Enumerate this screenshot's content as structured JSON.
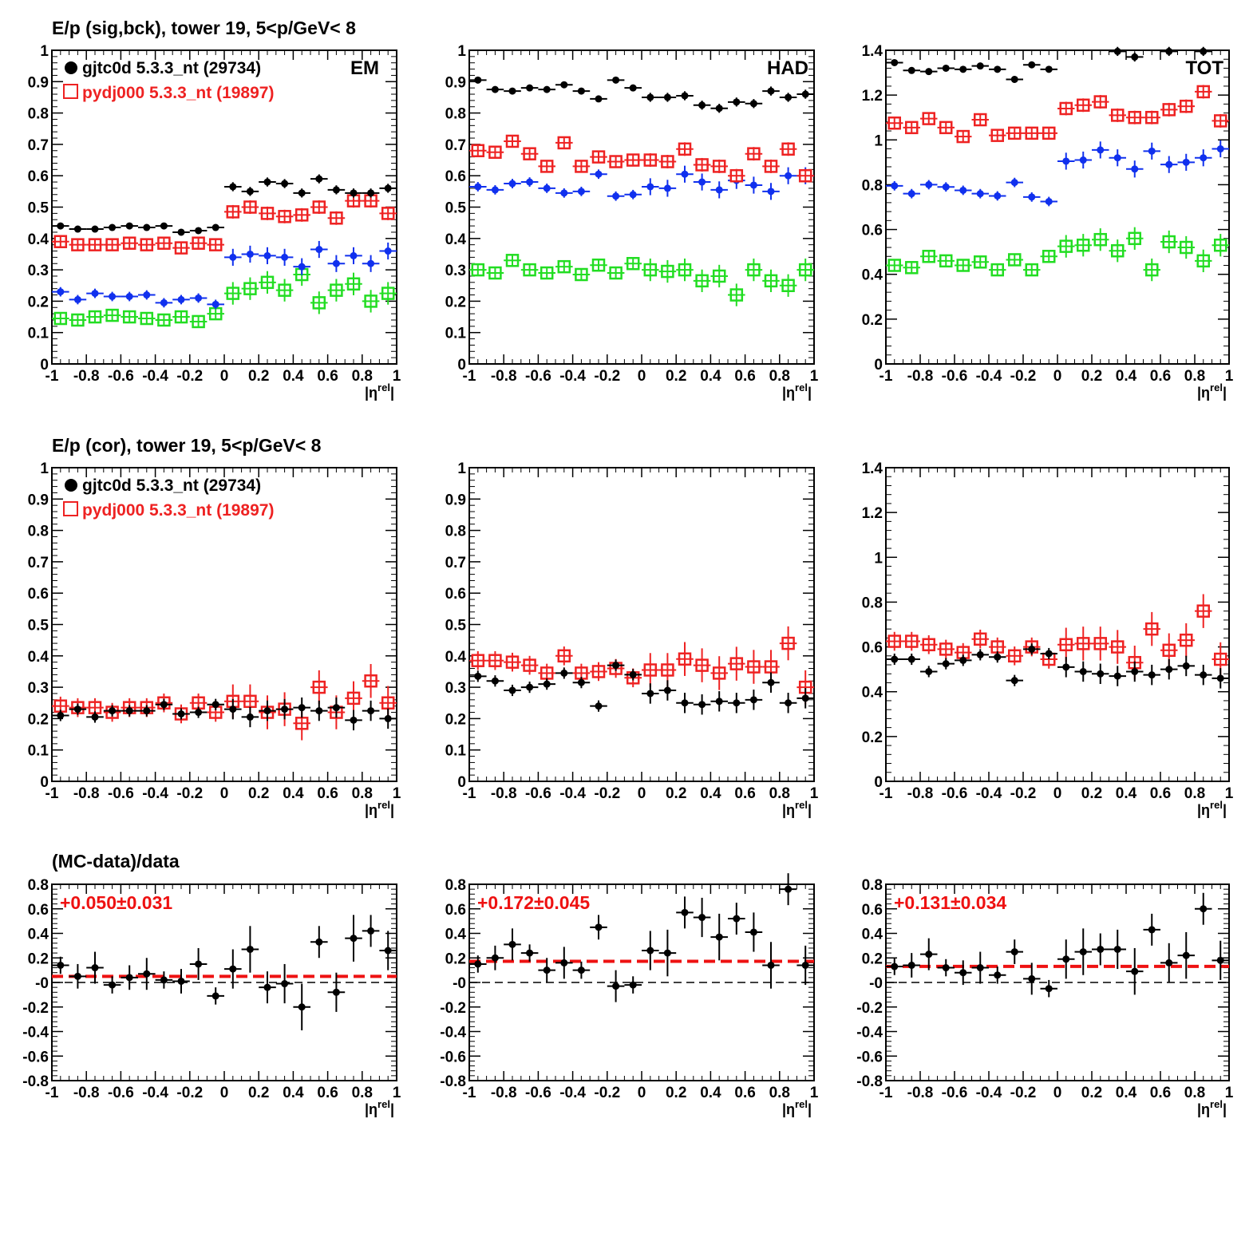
{
  "titles": {
    "row1": "E/p (sig,bck), tower 19,  5<p/GeV< 8",
    "row2": "E/p (cor), tower 19,  5<p/GeV< 8",
    "row3": "(MC-data)/data"
  },
  "legend": {
    "data_label": "gjtc0d 5.3.3_nt (29734)",
    "mc_label": "pydj000 5.3.3_nt (19897)"
  },
  "panel_labels": {
    "em": "EM",
    "had": "HAD",
    "tot": "TOT"
  },
  "axis": {
    "xlabel_main": "|η",
    "xlabel_sup": "rel",
    "xlabel_end": "|",
    "xticks": [
      "-1",
      "-0.8",
      "-0.6",
      "-0.4",
      "-0.2",
      "0",
      "0.2",
      "0.4",
      "0.6",
      "0.8",
      "1"
    ],
    "yticks_1": [
      "0",
      "0.1",
      "0.2",
      "0.3",
      "0.4",
      "0.5",
      "0.6",
      "0.7",
      "0.8",
      "0.9",
      "1"
    ],
    "yticks_14": [
      "0",
      "0.2",
      "0.4",
      "0.6",
      "0.8",
      "1",
      "1.2",
      "1.4"
    ],
    "yticks_ratio": [
      "-0.8",
      "-0.6",
      "-0.4",
      "-0.2",
      "-0",
      "0.2",
      "0.4",
      "0.6",
      "0.8"
    ]
  },
  "colors": {
    "data": "#000000",
    "mc": "#ee2222",
    "sig": "#1030ee",
    "bck": "#22dd22",
    "fit": "#ee1111"
  },
  "chart_data": [
    {
      "id": "em_sigbck",
      "type": "scatter",
      "label": "EM",
      "x": [
        -0.95,
        -0.85,
        -0.75,
        -0.65,
        -0.55,
        -0.45,
        -0.35,
        -0.25,
        -0.15,
        -0.05,
        0.05,
        0.15,
        0.25,
        0.35,
        0.45,
        0.55,
        0.65,
        0.75,
        0.85,
        0.95
      ],
      "xlim": [
        -1,
        1
      ],
      "ylim": [
        0,
        1
      ],
      "series": [
        {
          "name": "gjtc0d 5.3.3_nt (29734)",
          "values": [
            0.44,
            0.43,
            0.43,
            0.435,
            0.44,
            0.435,
            0.44,
            0.42,
            0.425,
            0.435,
            0.565,
            0.55,
            0.58,
            0.575,
            0.545,
            0.59,
            0.555,
            0.545,
            0.545,
            0.56
          ]
        },
        {
          "name": "pydj000 5.3.3_nt (19897)",
          "values": [
            0.39,
            0.38,
            0.38,
            0.38,
            0.385,
            0.38,
            0.385,
            0.37,
            0.385,
            0.38,
            0.485,
            0.5,
            0.48,
            0.47,
            0.475,
            0.5,
            0.465,
            0.52,
            0.52,
            0.48
          ]
        },
        {
          "values": [
            0.23,
            0.205,
            0.225,
            0.215,
            0.215,
            0.22,
            0.195,
            0.205,
            0.21,
            0.19,
            0.34,
            0.35,
            0.345,
            0.34,
            0.31,
            0.365,
            0.32,
            0.345,
            0.32,
            0.36
          ]
        },
        {
          "values": [
            0.145,
            0.14,
            0.15,
            0.155,
            0.15,
            0.145,
            0.14,
            0.15,
            0.135,
            0.16,
            0.225,
            0.24,
            0.26,
            0.235,
            0.285,
            0.195,
            0.235,
            0.255,
            0.2,
            0.225
          ]
        }
      ]
    },
    {
      "id": "had_sigbck",
      "type": "scatter",
      "label": "HAD",
      "x": [
        -0.95,
        -0.85,
        -0.75,
        -0.65,
        -0.55,
        -0.45,
        -0.35,
        -0.25,
        -0.15,
        -0.05,
        0.05,
        0.15,
        0.25,
        0.35,
        0.45,
        0.55,
        0.65,
        0.75,
        0.85,
        0.95
      ],
      "xlim": [
        -1,
        1
      ],
      "ylim": [
        0,
        1
      ],
      "series": [
        {
          "name": "gjtc0d 5.3.3_nt (29734)",
          "values": [
            0.905,
            0.875,
            0.87,
            0.88,
            0.875,
            0.89,
            0.87,
            0.845,
            0.905,
            0.88,
            0.85,
            0.85,
            0.855,
            0.825,
            0.815,
            0.835,
            0.83,
            0.87,
            0.85,
            0.86
          ]
        },
        {
          "name": "pydj000 5.3.3_nt (19897)",
          "values": [
            0.68,
            0.675,
            0.71,
            0.67,
            0.63,
            0.705,
            0.63,
            0.66,
            0.645,
            0.65,
            0.65,
            0.645,
            0.685,
            0.635,
            0.63,
            0.6,
            0.67,
            0.63,
            0.685,
            0.6
          ]
        },
        {
          "values": [
            0.565,
            0.555,
            0.575,
            0.58,
            0.56,
            0.545,
            0.55,
            0.605,
            0.535,
            0.54,
            0.565,
            0.56,
            0.605,
            0.58,
            0.555,
            0.585,
            0.57,
            0.55,
            0.6,
            0.6
          ]
        },
        {
          "values": [
            0.3,
            0.29,
            0.33,
            0.3,
            0.29,
            0.31,
            0.285,
            0.315,
            0.29,
            0.32,
            0.3,
            0.295,
            0.3,
            0.265,
            0.28,
            0.22,
            0.3,
            0.265,
            0.25,
            0.3
          ]
        }
      ]
    },
    {
      "id": "tot_sigbck",
      "type": "scatter",
      "label": "TOT",
      "x": [
        -0.95,
        -0.85,
        -0.75,
        -0.65,
        -0.55,
        -0.45,
        -0.35,
        -0.25,
        -0.15,
        -0.05,
        0.05,
        0.15,
        0.25,
        0.35,
        0.45,
        0.55,
        0.65,
        0.75,
        0.85,
        0.95
      ],
      "xlim": [
        -1,
        1
      ],
      "ylim": [
        0,
        1.4
      ],
      "series": [
        {
          "name": "gjtc0d 5.3.3_nt (29734)",
          "values": [
            1.345,
            1.31,
            1.305,
            1.32,
            1.315,
            1.33,
            1.315,
            1.27,
            1.335,
            1.315,
            null,
            null,
            null,
            1.395,
            1.37,
            null,
            1.395,
            null,
            1.395,
            null
          ]
        },
        {
          "name": "pydj000 5.3.3_nt (19897)",
          "values": [
            1.075,
            1.055,
            1.095,
            1.055,
            1.015,
            1.09,
            1.02,
            1.03,
            1.03,
            1.03,
            1.14,
            1.155,
            1.17,
            1.11,
            1.1,
            1.1,
            1.135,
            1.15,
            1.215,
            1.085
          ]
        },
        {
          "values": [
            0.795,
            0.76,
            0.8,
            0.79,
            0.775,
            0.76,
            0.75,
            0.81,
            0.745,
            0.725,
            0.905,
            0.91,
            0.955,
            0.92,
            0.87,
            0.95,
            0.89,
            0.9,
            0.92,
            0.96
          ]
        },
        {
          "values": [
            0.44,
            0.43,
            0.48,
            0.46,
            0.44,
            0.455,
            0.42,
            0.465,
            0.42,
            0.48,
            0.525,
            0.53,
            0.555,
            0.505,
            0.56,
            0.42,
            0.545,
            0.52,
            0.46,
            0.53
          ]
        }
      ]
    },
    {
      "id": "em_cor",
      "type": "scatter",
      "x": [
        -0.95,
        -0.85,
        -0.75,
        -0.65,
        -0.55,
        -0.45,
        -0.35,
        -0.25,
        -0.15,
        -0.05,
        0.05,
        0.15,
        0.25,
        0.35,
        0.45,
        0.55,
        0.65,
        0.75,
        0.85,
        0.95
      ],
      "xlim": [
        -1,
        1
      ],
      "ylim": [
        0,
        1
      ],
      "series": [
        {
          "name": "gjtc0d 5.3.3_nt (29734)",
          "values": [
            0.21,
            0.23,
            0.205,
            0.225,
            0.225,
            0.225,
            0.245,
            0.215,
            0.22,
            0.245,
            0.23,
            0.205,
            0.225,
            0.23,
            0.235,
            0.225,
            0.235,
            0.195,
            0.225,
            0.2
          ]
        },
        {
          "name": "pydj000 5.3.3_nt (19897)",
          "values": [
            0.24,
            0.235,
            0.235,
            0.22,
            0.235,
            0.235,
            0.25,
            0.215,
            0.25,
            0.22,
            0.255,
            0.255,
            0.22,
            0.23,
            0.185,
            0.3,
            0.22,
            0.265,
            0.32,
            0.25
          ]
        }
      ]
    },
    {
      "id": "had_cor",
      "type": "scatter",
      "x": [
        -0.95,
        -0.85,
        -0.75,
        -0.65,
        -0.55,
        -0.45,
        -0.35,
        -0.25,
        -0.15,
        -0.05,
        0.05,
        0.15,
        0.25,
        0.35,
        0.45,
        0.55,
        0.65,
        0.75,
        0.85,
        0.95
      ],
      "xlim": [
        -1,
        1
      ],
      "ylim": [
        0,
        1
      ],
      "series": [
        {
          "name": "gjtc0d 5.3.3_nt (29734)",
          "values": [
            0.335,
            0.32,
            0.29,
            0.3,
            0.31,
            0.345,
            0.315,
            0.24,
            0.37,
            0.34,
            0.28,
            0.29,
            0.25,
            0.245,
            0.255,
            0.25,
            0.26,
            0.315,
            0.25,
            0.265
          ]
        },
        {
          "name": "pydj000 5.3.3_nt (19897)",
          "values": [
            0.385,
            0.385,
            0.38,
            0.37,
            0.345,
            0.4,
            0.345,
            0.35,
            0.36,
            0.33,
            0.355,
            0.355,
            0.39,
            0.37,
            0.345,
            0.375,
            0.365,
            0.365,
            0.44,
            0.3
          ]
        }
      ]
    },
    {
      "id": "tot_cor",
      "type": "scatter",
      "x": [
        -0.95,
        -0.85,
        -0.75,
        -0.65,
        -0.55,
        -0.45,
        -0.35,
        -0.25,
        -0.15,
        -0.05,
        0.05,
        0.15,
        0.25,
        0.35,
        0.45,
        0.55,
        0.65,
        0.75,
        0.85,
        0.95
      ],
      "xlim": [
        -1,
        1
      ],
      "ylim": [
        0,
        1.4
      ],
      "series": [
        {
          "name": "gjtc0d 5.3.3_nt (29734)",
          "values": [
            0.545,
            0.545,
            0.49,
            0.525,
            0.54,
            0.565,
            0.555,
            0.45,
            0.59,
            0.57,
            0.51,
            0.49,
            0.48,
            0.47,
            0.49,
            0.475,
            0.5,
            0.515,
            0.475,
            0.46
          ]
        },
        {
          "name": "pydj000 5.3.3_nt (19897)",
          "values": [
            0.625,
            0.625,
            0.61,
            0.59,
            0.575,
            0.635,
            0.6,
            0.56,
            0.6,
            0.545,
            0.61,
            0.615,
            0.615,
            0.6,
            0.53,
            0.68,
            0.585,
            0.63,
            0.76,
            0.545
          ]
        }
      ]
    },
    {
      "id": "em_ratio",
      "type": "scatter",
      "annotation": "+0.050±0.031",
      "x": [
        -0.95,
        -0.85,
        -0.75,
        -0.65,
        -0.55,
        -0.45,
        -0.35,
        -0.25,
        -0.15,
        -0.05,
        0.05,
        0.15,
        0.25,
        0.35,
        0.45,
        0.55,
        0.65,
        0.75,
        0.85,
        0.95
      ],
      "xlim": [
        -1,
        1
      ],
      "ylim": [
        -0.8,
        0.8
      ],
      "fit": 0.05,
      "series": [
        {
          "name": "(MC-data)/data",
          "values": [
            0.14,
            0.05,
            0.12,
            -0.02,
            0.04,
            0.07,
            0.02,
            0.01,
            0.15,
            -0.11,
            0.11,
            0.27,
            -0.04,
            -0.01,
            -0.2,
            0.33,
            -0.08,
            0.36,
            0.42,
            0.26
          ]
        }
      ]
    },
    {
      "id": "had_ratio",
      "type": "scatter",
      "annotation": "+0.172±0.045",
      "x": [
        -0.95,
        -0.85,
        -0.75,
        -0.65,
        -0.55,
        -0.45,
        -0.35,
        -0.25,
        -0.15,
        -0.05,
        0.05,
        0.15,
        0.25,
        0.35,
        0.45,
        0.55,
        0.65,
        0.75,
        0.85,
        0.95
      ],
      "xlim": [
        -1,
        1
      ],
      "ylim": [
        -0.8,
        0.8
      ],
      "fit": 0.172,
      "series": [
        {
          "name": "(MC-data)/data",
          "values": [
            0.15,
            0.2,
            0.31,
            0.24,
            0.1,
            0.16,
            0.1,
            0.45,
            -0.03,
            -0.02,
            0.26,
            0.24,
            0.57,
            0.53,
            0.37,
            0.52,
            0.41,
            0.14,
            0.76,
            0.14
          ]
        }
      ]
    },
    {
      "id": "tot_ratio",
      "type": "scatter",
      "annotation": "+0.131±0.034",
      "x": [
        -0.95,
        -0.85,
        -0.75,
        -0.65,
        -0.55,
        -0.45,
        -0.35,
        -0.25,
        -0.15,
        -0.05,
        0.05,
        0.15,
        0.25,
        0.35,
        0.45,
        0.55,
        0.65,
        0.75,
        0.85,
        0.95
      ],
      "xlim": [
        -1,
        1
      ],
      "ylim": [
        -0.8,
        0.8
      ],
      "fit": 0.131,
      "series": [
        {
          "name": "(MC-data)/data",
          "values": [
            0.13,
            0.14,
            0.23,
            0.12,
            0.08,
            0.12,
            0.06,
            0.25,
            0.03,
            -0.05,
            0.19,
            0.25,
            0.27,
            0.27,
            0.09,
            0.43,
            0.16,
            0.22,
            0.6,
            0.18
          ]
        }
      ]
    }
  ]
}
